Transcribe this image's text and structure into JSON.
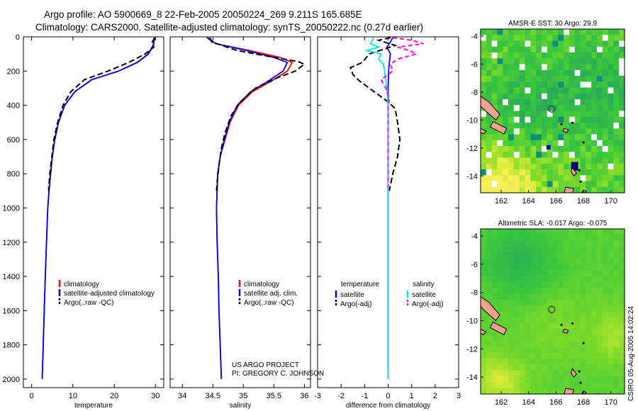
{
  "header": {
    "line1": "Argo profile: AO 5900669_8 22-Feb-2005 20050224_269 9.211S 165.685E",
    "line2": "Climatology: CARS2000. Satellite-adjusted climatology: synTS_20050222.nc (0.27d earlier)"
  },
  "colors": {
    "climatology": "#ff0000",
    "satellite": "#0000ff",
    "argo": "#000000",
    "sat_diff": "#00e5ee",
    "argo_diff": "#ff00ff",
    "map_land": "#f4a090"
  },
  "project_note": [
    "US ARGO PROJECT",
    "PI: GREGORY C. JOHNSON"
  ],
  "side_label": "CSIRO 05-Aug-2005 14:02:24",
  "chart_data": [
    {
      "id": "temperature",
      "type": "line",
      "xlabel": "temperature",
      "ylabel": "",
      "xlim": [
        -2,
        32
      ],
      "ylim": [
        2050,
        0
      ],
      "xticks": [
        0,
        10,
        20,
        30
      ],
      "yticks": [
        0,
        200,
        400,
        600,
        800,
        1000,
        1200,
        1400,
        1600,
        1800,
        2000
      ],
      "legend": [
        "climatology",
        "satellite-adjusted climatology",
        "Argo(..raw -QC)"
      ],
      "series": [
        {
          "name": "climatology",
          "role": "clim",
          "points": [
            [
              29.6,
              5
            ],
            [
              29.4,
              50
            ],
            [
              28.2,
              100
            ],
            [
              25.5,
              150
            ],
            [
              21,
              200
            ],
            [
              14.5,
              250
            ],
            [
              10.5,
              320
            ],
            [
              8,
              400
            ],
            [
              6.5,
              500
            ],
            [
              5.6,
              600
            ],
            [
              5,
              700
            ],
            [
              4.6,
              800
            ],
            [
              4.2,
              900
            ],
            [
              3.9,
              1000
            ],
            [
              3.6,
              1200
            ],
            [
              3.3,
              1400
            ],
            [
              3.05,
              1600
            ],
            [
              2.8,
              1800
            ],
            [
              2.55,
              2000
            ]
          ]
        },
        {
          "name": "satellite-adjusted climatology",
          "role": "sat",
          "points": [
            [
              29.8,
              5
            ],
            [
              29.5,
              50
            ],
            [
              28.3,
              100
            ],
            [
              25.6,
              150
            ],
            [
              21.1,
              200
            ],
            [
              14.6,
              250
            ],
            [
              10.5,
              320
            ],
            [
              8,
              400
            ],
            [
              6.5,
              500
            ],
            [
              5.6,
              600
            ],
            [
              5,
              700
            ],
            [
              4.6,
              800
            ],
            [
              4.2,
              900
            ],
            [
              3.9,
              1000
            ],
            [
              3.6,
              1200
            ],
            [
              3.3,
              1400
            ],
            [
              3.05,
              1600
            ],
            [
              2.8,
              1800
            ],
            [
              2.55,
              2000
            ]
          ]
        },
        {
          "name": "Argo(..raw -QC)",
          "role": "argo",
          "points": [
            [
              29.9,
              5
            ],
            [
              29.2,
              30
            ],
            [
              29.6,
              60
            ],
            [
              27.5,
              100
            ],
            [
              23.5,
              150
            ],
            [
              18.5,
              200
            ],
            [
              12.8,
              250
            ],
            [
              9.5,
              320
            ],
            [
              7.6,
              400
            ],
            [
              6.3,
              500
            ],
            [
              5.4,
              600
            ],
            [
              4.9,
              700
            ],
            [
              4.4,
              800
            ],
            [
              4.1,
              900
            ]
          ]
        }
      ]
    },
    {
      "id": "salinity",
      "type": "line",
      "xlabel": "salinity",
      "ylabel": "",
      "xlim": [
        33.8,
        36.1
      ],
      "ylim": [
        2050,
        0
      ],
      "xticks": [
        34,
        34.5,
        35,
        35.5,
        36
      ],
      "legend": [
        "climatology",
        "satellite adj. clim.",
        "Argo(..raw -QC)"
      ],
      "series": [
        {
          "name": "climatology",
          "role": "clim",
          "points": [
            [
              34.42,
              5
            ],
            [
              34.55,
              40
            ],
            [
              35.1,
              80
            ],
            [
              35.6,
              120
            ],
            [
              35.8,
              150
            ],
            [
              35.72,
              200
            ],
            [
              35.45,
              260
            ],
            [
              35.15,
              320
            ],
            [
              34.92,
              400
            ],
            [
              34.78,
              500
            ],
            [
              34.7,
              600
            ],
            [
              34.62,
              700
            ],
            [
              34.58,
              800
            ],
            [
              34.56,
              1000
            ],
            [
              34.57,
              1200
            ],
            [
              34.59,
              1400
            ],
            [
              34.6,
              1600
            ],
            [
              34.62,
              1800
            ],
            [
              34.64,
              2000
            ]
          ]
        },
        {
          "name": "satellite adj. clim.",
          "role": "sat",
          "points": [
            [
              34.4,
              5
            ],
            [
              34.55,
              40
            ],
            [
              35.05,
              80
            ],
            [
              35.5,
              120
            ],
            [
              35.72,
              150
            ],
            [
              35.65,
              200
            ],
            [
              35.4,
              260
            ],
            [
              35.12,
              320
            ],
            [
              34.9,
              400
            ],
            [
              34.77,
              500
            ],
            [
              34.69,
              600
            ],
            [
              34.62,
              700
            ],
            [
              34.58,
              800
            ],
            [
              34.56,
              1000
            ],
            [
              34.57,
              1200
            ],
            [
              34.59,
              1400
            ],
            [
              34.6,
              1600
            ],
            [
              34.62,
              1800
            ],
            [
              34.64,
              2000
            ]
          ]
        },
        {
          "name": "Argo(..raw -QC)",
          "role": "argo",
          "points": [
            [
              34.45,
              5
            ],
            [
              34.48,
              30
            ],
            [
              34.9,
              80
            ],
            [
              35.5,
              120
            ],
            [
              35.9,
              145
            ],
            [
              36.0,
              160
            ],
            [
              35.85,
              200
            ],
            [
              35.55,
              240
            ],
            [
              35.2,
              300
            ],
            [
              34.95,
              380
            ],
            [
              34.8,
              460
            ],
            [
              34.7,
              560
            ],
            [
              34.64,
              650
            ],
            [
              34.6,
              750
            ],
            [
              34.57,
              850
            ],
            [
              34.56,
              900
            ]
          ]
        }
      ]
    },
    {
      "id": "difference",
      "type": "line",
      "xlabel": "difference from climatology",
      "ylabel": "",
      "xlim": [
        -3,
        3
      ],
      "ylim": [
        2050,
        0
      ],
      "xticks": [
        -3,
        -2,
        -1,
        0,
        1,
        2,
        3
      ],
      "legend": [
        "temperature",
        "satellite",
        "Argo(-adj)",
        "salinity",
        "satellite",
        "Argo(-adj)"
      ],
      "series": [
        {
          "name": "temperature satellite",
          "role": "sat",
          "points": [
            [
              0.2,
              5
            ],
            [
              0.1,
              30
            ],
            [
              -0.05,
              60
            ],
            [
              0.1,
              100
            ],
            [
              0.05,
              150
            ],
            [
              0.02,
              200
            ],
            [
              0,
              300
            ],
            [
              0,
              2000
            ]
          ]
        },
        {
          "name": "temperature Argo(-adj)",
          "role": "argo",
          "points": [
            [
              0.1,
              5
            ],
            [
              -0.4,
              20
            ],
            [
              0.3,
              50
            ],
            [
              -0.8,
              100
            ],
            [
              -1.1,
              150
            ],
            [
              -1.6,
              180
            ],
            [
              -1.5,
              220
            ],
            [
              -1.2,
              260
            ],
            [
              -0.8,
              300
            ],
            [
              -0.4,
              340
            ],
            [
              0,
              380
            ],
            [
              0.3,
              420
            ],
            [
              0.4,
              500
            ],
            [
              0.5,
              600
            ],
            [
              0.4,
              700
            ],
            [
              0.2,
              800
            ],
            [
              0.05,
              900
            ]
          ]
        },
        {
          "name": "salinity satellite",
          "role": "sat_diff",
          "points": [
            [
              -0.6,
              5
            ],
            [
              -0.75,
              40
            ],
            [
              -0.4,
              60
            ],
            [
              -0.9,
              80
            ],
            [
              -0.3,
              100
            ],
            [
              -0.4,
              130
            ],
            [
              -0.2,
              160
            ],
            [
              -0.15,
              200
            ],
            [
              -0.1,
              250
            ],
            [
              -0.05,
              300
            ],
            [
              0,
              400
            ],
            [
              0,
              2000
            ]
          ]
        },
        {
          "name": "salinity Argo(-adj)",
          "role": "argo_diff",
          "points": [
            [
              0.2,
              5
            ],
            [
              1,
              20
            ],
            [
              1.5,
              40
            ],
            [
              0.4,
              60
            ],
            [
              0.9,
              80
            ],
            [
              1.2,
              100
            ],
            [
              0.4,
              130
            ],
            [
              0.1,
              160
            ],
            [
              0.2,
              200
            ],
            [
              -0.3,
              250
            ],
            [
              -0.1,
              300
            ],
            [
              0.05,
              360
            ],
            [
              0,
              400
            ],
            [
              0,
              900
            ]
          ]
        }
      ]
    },
    {
      "id": "sst-map",
      "type": "heatmap",
      "title": "AMSR-E SST: 30 Argo: 29.9",
      "xlim": [
        160.5,
        171
      ],
      "ylim": [
        -15.2,
        -3.5
      ],
      "xticks": [
        162,
        164,
        166,
        168,
        170
      ],
      "yticks": [
        -4,
        -6,
        -8,
        -10,
        -12,
        -14
      ],
      "float_position": [
        165.685,
        -9.211
      ]
    },
    {
      "id": "sla-map",
      "type": "heatmap",
      "title": "Altimetric SLA: -0.017 Argo: -0.075",
      "xlim": [
        160.5,
        171
      ],
      "ylim": [
        -15.2,
        -3.5
      ],
      "xticks": [
        162,
        164,
        166,
        168,
        170
      ],
      "yticks": [
        -4,
        -6,
        -8,
        -10,
        -12,
        -14
      ],
      "float_position": [
        165.685,
        -9.211
      ]
    }
  ]
}
